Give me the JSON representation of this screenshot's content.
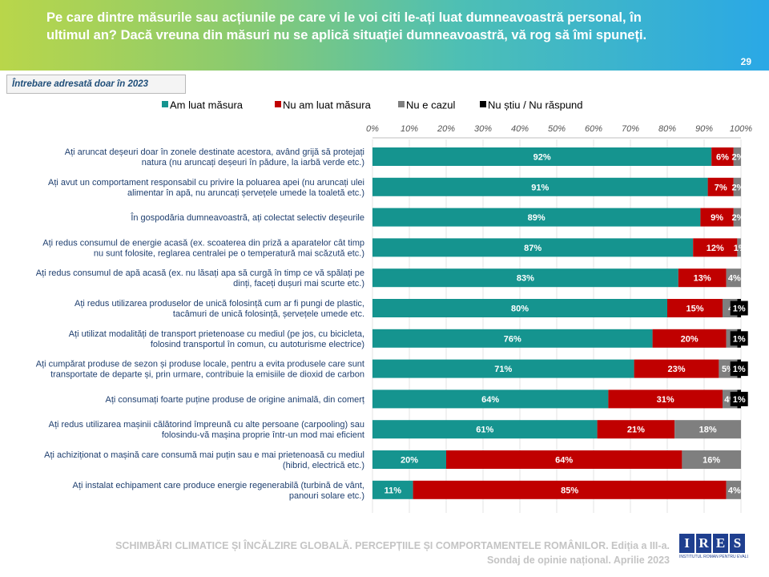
{
  "header": {
    "title": "Pe care dintre măsurile sau acțiunile pe care vi le voi citi le-ați luat dumneavoastră personal, în ultimul an? Dacă vreuna din măsuri nu se aplică situației dumneavoastră, vă rog să îmi spuneți.",
    "page_number": "29"
  },
  "note": "Întrebare adresată doar în 2023",
  "footer": {
    "line1": "SCHIMBĂRI CLIMATICE ȘI ÎNCĂLZIRE GLOBALĂ. PERCEPȚIILE ȘI COMPORTAMENTELE ROMÂNILOR. Ediția a III-a.",
    "line2": "Sondaj de opinie național. Aprilie 2023"
  },
  "logo": {
    "letters": [
      "I",
      "R",
      "E",
      "S"
    ],
    "tagline": "INSTITUTUL ROMÂN PENTRU EVALUARE ȘI STRATEGIE"
  },
  "colors": {
    "luat": "#15948f",
    "nu_luat": "#c00000",
    "nu_e_cazul": "#7f7f7f",
    "nu_stiu": "#000000"
  },
  "chart_data": {
    "type": "bar",
    "orientation": "horizontal",
    "stacked": true,
    "xlim": [
      0,
      100
    ],
    "xticks": [
      "0%",
      "10%",
      "20%",
      "30%",
      "40%",
      "50%",
      "60%",
      "70%",
      "80%",
      "90%",
      "100%"
    ],
    "legend_position": "top",
    "categories": [
      [
        "Ați aruncat deșeuri doar în zonele destinate acestora, având grijă să protejați",
        "natura (nu aruncați deșeuri în pădure, la iarbă verde etc.)"
      ],
      [
        "Ați avut un comportament responsabil cu privire la poluarea apei (nu aruncați ulei",
        "alimentar în apă, nu aruncați șervețele umede la toaletă etc.)"
      ],
      [
        "În gospodăria dumneavoastră, ați colectat selectiv deșeurile"
      ],
      [
        "Ați redus  consumul de energie acasă (ex. scoaterea din priză a aparatelor cât timp",
        "nu sunt folosite, reglarea centralei pe o temperatură mai scăzută etc.)"
      ],
      [
        "Ați redus consumul de apă acasă (ex. nu lăsați apa să curgă în timp ce vă spălați pe",
        "dinți, faceți dușuri mai scurte etc.)"
      ],
      [
        "Ați redus utilizarea produselor de unică folosință cum ar fi pungi de plastic,",
        "tacâmuri de unică folosință, șervețele umede etc."
      ],
      [
        "Ați utilizat modalități de transport prietenoase cu mediul (pe jos, cu bicicleta,",
        "folosind transportul în comun, cu autoturisme electrice)"
      ],
      [
        "Ați cumpărat produse de sezon și produse locale, pentru a evita produsele care sunt",
        "transportate de departe și, prin urmare, contribuie la emisiile de dioxid de carbon"
      ],
      [
        "Ați consumați foarte puține produse de origine animală, din comerț"
      ],
      [
        "Ați redus utilizarea mașinii călătorind împreună cu alte persoane (carpooling) sau",
        "folosindu-vă mașina proprie într-un mod mai eficient"
      ],
      [
        "Ați achiziționat o mașină care consumă mai puțin sau e mai prietenoasă cu mediul",
        "(hibrid, electrică etc.)"
      ],
      [
        "Ați instalat echipament care produce energie regenerabilă (turbină de vânt,",
        "panouri solare etc.)"
      ]
    ],
    "series": [
      {
        "name": "Am luat măsura",
        "values": [
          92,
          91,
          89,
          87,
          83,
          80,
          76,
          71,
          64,
          61,
          20,
          11
        ]
      },
      {
        "name": "Nu am luat măsura",
        "values": [
          6,
          7,
          9,
          12,
          13,
          15,
          20,
          23,
          31,
          21,
          64,
          85
        ]
      },
      {
        "name": "Nu e cazul",
        "values": [
          2,
          2,
          2,
          1,
          4,
          4,
          3,
          5,
          4,
          18,
          16,
          4
        ]
      },
      {
        "name": "Nu știu / Nu răspund",
        "values": [
          0,
          0,
          0,
          0,
          0,
          1,
          1,
          1,
          1,
          0,
          0,
          0
        ]
      }
    ],
    "data_labels": [
      [
        "92%",
        "6%",
        "2%",
        ""
      ],
      [
        "91%",
        "7%",
        "2%",
        ""
      ],
      [
        "89%",
        "9%",
        "2%",
        ""
      ],
      [
        "87%",
        "12%",
        "1%",
        ""
      ],
      [
        "83%",
        "13%",
        "4%",
        ""
      ],
      [
        "80%",
        "15%",
        "4",
        "1%"
      ],
      [
        "76%",
        "20%",
        "3",
        "1%"
      ],
      [
        "71%",
        "23%",
        "5%",
        "1%"
      ],
      [
        "64%",
        "31%",
        "4%",
        "1%"
      ],
      [
        "61%",
        "21%",
        "18%",
        ""
      ],
      [
        "20%",
        "64%",
        "16%",
        ""
      ],
      [
        "11%",
        "85%",
        "4%",
        ""
      ]
    ]
  }
}
